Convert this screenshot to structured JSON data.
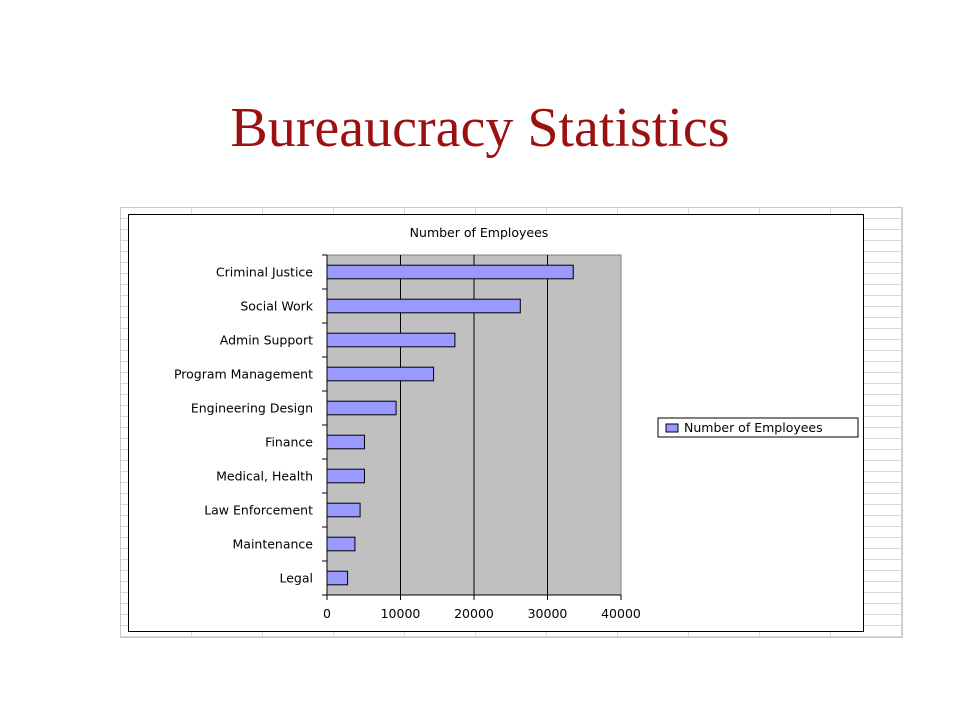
{
  "slide": {
    "title": "Bureaucracy Statistics"
  },
  "chart_data": {
    "type": "bar",
    "orientation": "horizontal",
    "title": "Number of Employees",
    "categories": [
      "Criminal Justice",
      "Social Work",
      "Admin Support",
      "Program Management",
      "Engineering Design",
      "Finance",
      "Medical, Health",
      "Law Enforcement",
      "Maintenance",
      "Legal"
    ],
    "series": [
      {
        "name": "Number of Employees",
        "values": [
          33500,
          26300,
          17400,
          14500,
          9400,
          5100,
          5100,
          4500,
          3800,
          2800
        ]
      }
    ],
    "xlim": [
      0,
      40000
    ],
    "xticks": [
      "0",
      "10000",
      "20000",
      "30000",
      "40000"
    ],
    "grid": true,
    "legend": "right",
    "colors": {
      "bar_fill": "#9999ff",
      "plot_background": "#c0c0c0",
      "title_color": "#9b1111"
    }
  }
}
